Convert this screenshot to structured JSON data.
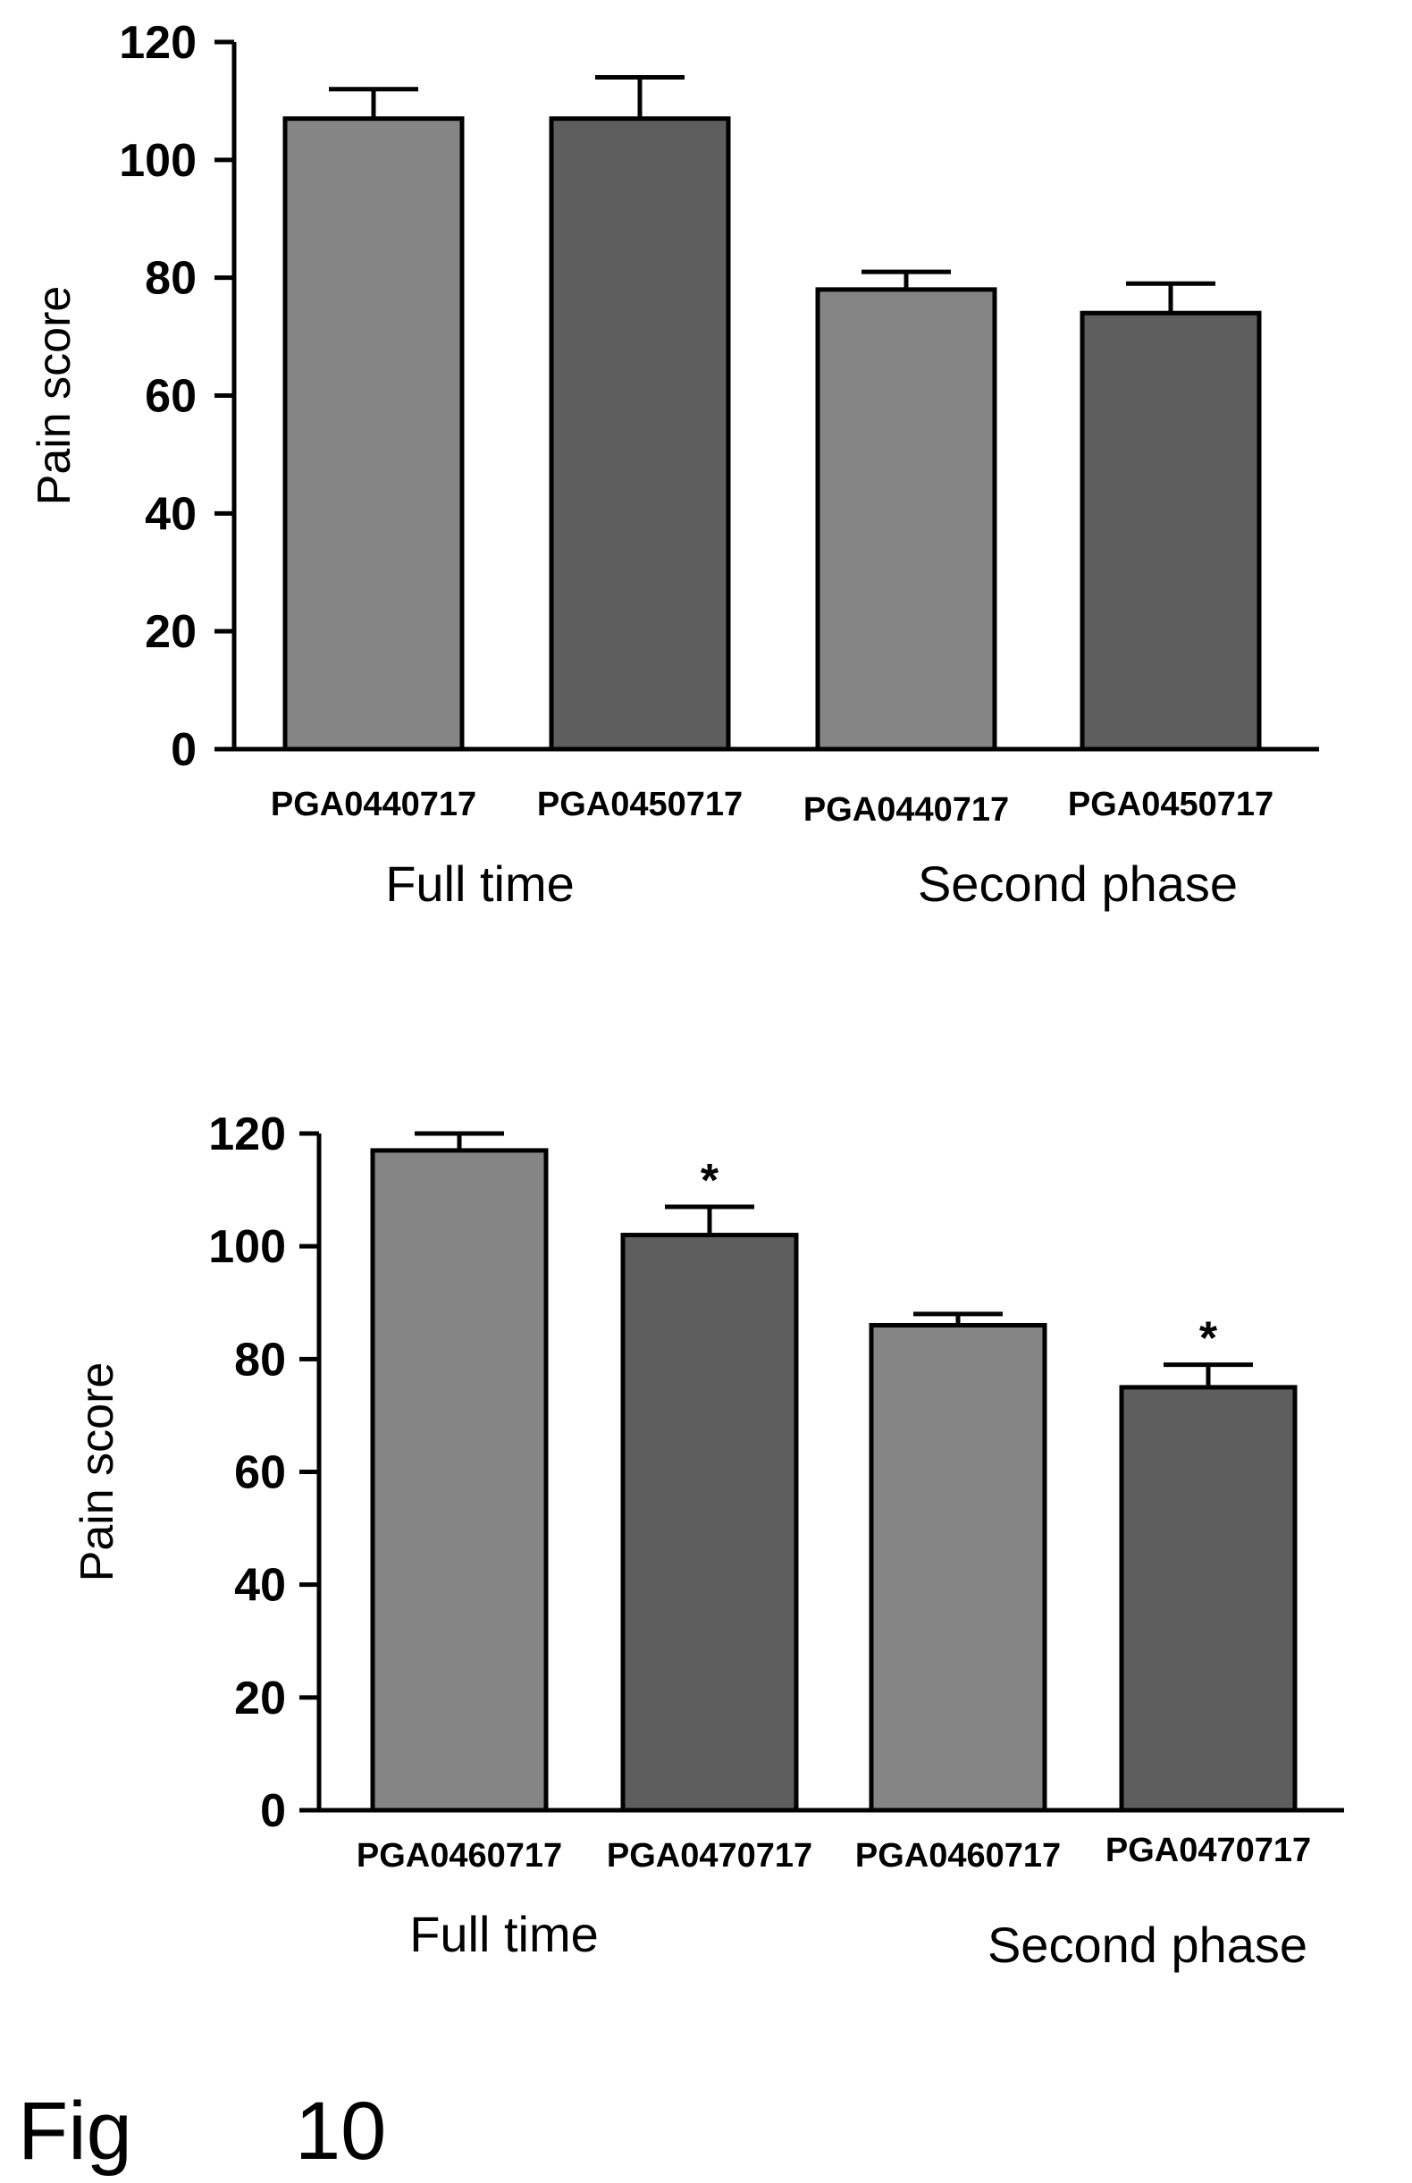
{
  "chart_data": [
    {
      "type": "bar",
      "title": "",
      "xlabel": "",
      "ylabel": "Pain score",
      "ylim": [
        0,
        120
      ],
      "yticks": [
        "0",
        "20",
        "40",
        "60",
        "80",
        "100",
        "120"
      ],
      "grid": false,
      "categories": [
        "PGA0440717",
        "PGA0450717",
        "PGA0440717",
        "PGA0450717"
      ],
      "values": [
        107,
        107,
        78,
        74
      ],
      "errors": [
        5,
        7,
        3,
        5
      ],
      "significance": [
        "",
        "",
        "",
        ""
      ],
      "bar_colors": [
        "#858585",
        "#5e5e5e",
        "#858585",
        "#5e5e5e"
      ],
      "groups": [
        "Full time",
        "Second phase"
      ]
    },
    {
      "type": "bar",
      "title": "",
      "xlabel": "",
      "ylabel": "Pain score",
      "ylim": [
        0,
        120
      ],
      "yticks": [
        "0",
        "20",
        "40",
        "60",
        "80",
        "100",
        "120"
      ],
      "grid": false,
      "categories": [
        "PGA0460717",
        "PGA0470717",
        "PGA0460717",
        "PGA0470717"
      ],
      "values": [
        117,
        102,
        86,
        75
      ],
      "errors": [
        3,
        5,
        2,
        4
      ],
      "significance": [
        "",
        "*",
        "",
        "*"
      ],
      "bar_colors": [
        "#858585",
        "#5e5e5e",
        "#858585",
        "#5e5e5e"
      ],
      "groups": [
        "Full time",
        "Second phase"
      ]
    }
  ],
  "figure_label": {
    "prefix": "Fig",
    "number": "10"
  }
}
